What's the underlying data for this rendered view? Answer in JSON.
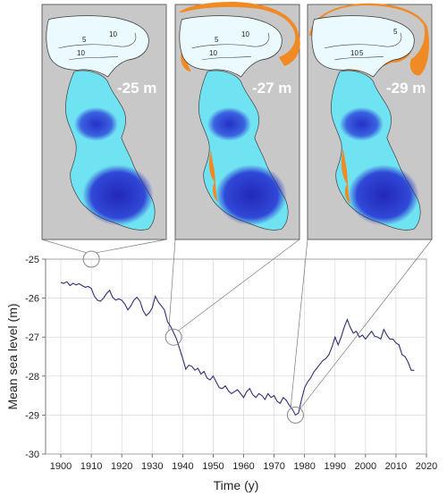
{
  "maps": [
    {
      "label": "-25 m",
      "contours": [
        "5",
        "10",
        "10"
      ]
    },
    {
      "label": "-27 m",
      "contours": [
        "5",
        "10",
        "10"
      ]
    },
    {
      "label": "-29 m",
      "contours": [
        "5",
        "10",
        "5"
      ]
    }
  ],
  "colors": {
    "land": "#c8c8c8",
    "shallow": "#eafaff",
    "mid": "#6fe3f2",
    "deep": "#2a39d6",
    "exposed": "#f08a24",
    "line": "#2e2e7a",
    "connector": "#7a7a7a"
  },
  "chart_data": {
    "type": "line",
    "title": "",
    "xlabel": "Time (y)",
    "ylabel": "Mean sea level (m)",
    "xlim": [
      1895,
      2020
    ],
    "ylim": [
      -30,
      -25
    ],
    "xticks": [
      1900,
      1910,
      1920,
      1930,
      1940,
      1950,
      1960,
      1970,
      1980,
      1990,
      2000,
      2010,
      2020
    ],
    "yticks": [
      -25,
      -26,
      -27,
      -28,
      -29,
      -30
    ],
    "grid": true,
    "series": [
      {
        "x": [
          1900,
          1901,
          1902,
          1903,
          1904,
          1905,
          1906,
          1907,
          1908,
          1909,
          1910,
          1911,
          1912,
          1913,
          1914,
          1915,
          1916,
          1917,
          1918,
          1919,
          1920,
          1921,
          1922,
          1923,
          1924,
          1925,
          1926,
          1927,
          1928,
          1929,
          1930,
          1931,
          1932,
          1933,
          1934,
          1935,
          1936,
          1937,
          1938,
          1939,
          1940,
          1941,
          1942,
          1943,
          1944,
          1945,
          1946,
          1947,
          1948,
          1949,
          1950,
          1951,
          1952,
          1953,
          1954,
          1955,
          1956,
          1957,
          1958,
          1959,
          1960,
          1961,
          1962,
          1963,
          1964,
          1965,
          1966,
          1967,
          1968,
          1969,
          1970,
          1971,
          1972,
          1973,
          1974,
          1975,
          1976,
          1977,
          1978,
          1979,
          1980,
          1981,
          1982,
          1983,
          1984,
          1985,
          1986,
          1987,
          1988,
          1989,
          1990,
          1991,
          1992,
          1993,
          1994,
          1995,
          1996,
          1997,
          1998,
          1999,
          2000,
          2001,
          2002,
          2003,
          2004,
          2005,
          2006,
          2007,
          2008,
          2009,
          2010,
          2011,
          2012,
          2013,
          2014,
          2015,
          2016
        ],
        "y": [
          -25.6,
          -25.62,
          -25.58,
          -25.68,
          -25.62,
          -25.66,
          -25.63,
          -25.68,
          -25.72,
          -25.7,
          -25.75,
          -25.95,
          -26.05,
          -26.08,
          -26.0,
          -25.88,
          -25.8,
          -25.98,
          -26.05,
          -26.02,
          -26.05,
          -26.15,
          -26.3,
          -26.2,
          -26.05,
          -25.98,
          -26.08,
          -26.32,
          -26.45,
          -26.38,
          -26.25,
          -25.95,
          -26.1,
          -26.2,
          -26.3,
          -26.6,
          -26.72,
          -26.88,
          -27.05,
          -27.3,
          -27.55,
          -27.82,
          -27.72,
          -27.75,
          -27.85,
          -27.8,
          -27.95,
          -27.88,
          -28.05,
          -28.1,
          -28.0,
          -28.15,
          -28.3,
          -28.32,
          -28.25,
          -28.38,
          -28.45,
          -28.4,
          -28.35,
          -28.45,
          -28.55,
          -28.4,
          -28.32,
          -28.48,
          -28.55,
          -28.45,
          -28.5,
          -28.6,
          -28.45,
          -28.55,
          -28.5,
          -28.65,
          -28.7,
          -28.55,
          -28.62,
          -28.75,
          -28.85,
          -29.0,
          -28.95,
          -28.6,
          -28.3,
          -28.15,
          -28.05,
          -27.9,
          -27.8,
          -27.7,
          -27.6,
          -27.55,
          -27.45,
          -27.25,
          -27.0,
          -27.2,
          -27.0,
          -26.75,
          -26.55,
          -26.75,
          -26.9,
          -26.85,
          -27.0,
          -26.95,
          -27.05,
          -26.95,
          -26.85,
          -26.98,
          -27.0,
          -27.05,
          -26.8,
          -26.95,
          -27.05,
          -27.05,
          -27.15,
          -27.2,
          -27.45,
          -27.5,
          -27.65,
          -27.85,
          -27.85
        ]
      }
    ],
    "highlights": [
      {
        "x": 1910,
        "y": -25.0
      },
      {
        "x": 1937,
        "y": -27.0
      },
      {
        "x": 1977,
        "y": -29.0
      }
    ]
  }
}
